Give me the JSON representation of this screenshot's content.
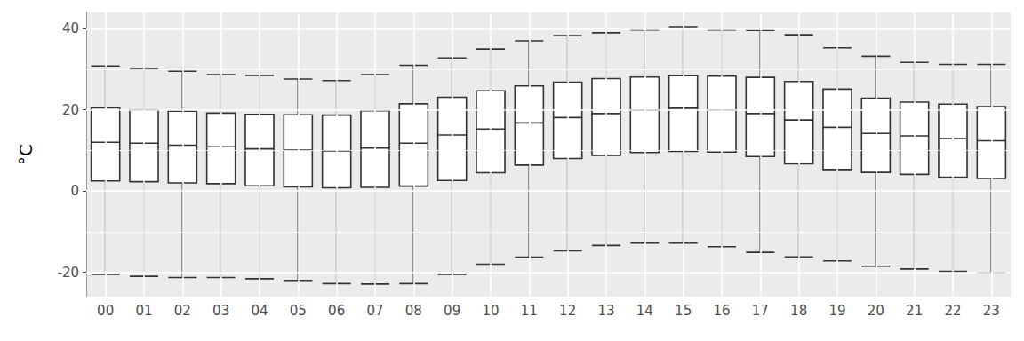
{
  "chart_data": {
    "type": "boxplot",
    "ylabel": "°C",
    "categories": [
      "00",
      "01",
      "02",
      "03",
      "04",
      "05",
      "06",
      "07",
      "08",
      "09",
      "10",
      "11",
      "12",
      "13",
      "14",
      "15",
      "16",
      "17",
      "18",
      "19",
      "20",
      "21",
      "22",
      "23"
    ],
    "values": [
      [
        -20.5,
        2.5,
        12.0,
        20.5,
        30.8
      ],
      [
        -21.0,
        2.3,
        11.8,
        20.0,
        30.0
      ],
      [
        -21.3,
        2.0,
        11.3,
        19.7,
        29.5
      ],
      [
        -21.3,
        1.8,
        10.9,
        19.2,
        28.7
      ],
      [
        -21.6,
        1.3,
        10.4,
        18.9,
        28.5
      ],
      [
        -22.0,
        1.0,
        10.1,
        18.8,
        27.6
      ],
      [
        -22.8,
        0.8,
        9.9,
        18.7,
        27.2
      ],
      [
        -22.9,
        0.9,
        10.6,
        19.8,
        28.7
      ],
      [
        -22.8,
        1.2,
        11.8,
        21.5,
        31.0
      ],
      [
        -20.5,
        2.6,
        13.8,
        23.1,
        32.8
      ],
      [
        -18.0,
        4.5,
        15.3,
        24.7,
        35.0
      ],
      [
        -16.3,
        6.4,
        16.8,
        25.9,
        37.0
      ],
      [
        -14.7,
        8.0,
        18.1,
        26.8,
        38.3
      ],
      [
        -13.4,
        8.8,
        19.1,
        27.7,
        39.0
      ],
      [
        -12.8,
        9.5,
        19.9,
        28.1,
        39.7
      ],
      [
        -12.8,
        9.8,
        20.4,
        28.4,
        40.5
      ],
      [
        -13.7,
        9.6,
        20.0,
        28.3,
        39.7
      ],
      [
        -15.1,
        8.5,
        19.1,
        28.0,
        39.6
      ],
      [
        -16.2,
        6.7,
        17.5,
        27.0,
        38.5
      ],
      [
        -17.2,
        5.3,
        15.7,
        25.1,
        35.3
      ],
      [
        -18.5,
        4.6,
        14.2,
        22.9,
        33.2
      ],
      [
        -19.2,
        4.1,
        13.6,
        21.9,
        31.7
      ],
      [
        -19.8,
        3.4,
        12.9,
        21.4,
        31.2
      ],
      [
        -20.1,
        3.1,
        12.4,
        20.8,
        31.2
      ]
    ],
    "color": "#ffffff",
    "ylim": [
      -26,
      44
    ],
    "yticks": [
      -20,
      0,
      20,
      40
    ],
    "grid": true
  }
}
